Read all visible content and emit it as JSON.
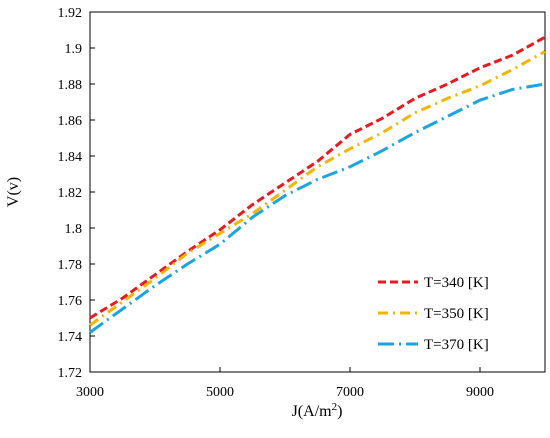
{
  "chart_data": {
    "type": "line",
    "xlabel": "J(A/m2)",
    "xlabel_main": "J(A/m",
    "xlabel_sup": "2",
    "xlabel_close": ")",
    "ylabel": "V(v)",
    "xlim": [
      3000,
      10000
    ],
    "ylim": [
      1.72,
      1.92
    ],
    "xticks": [
      "3000",
      "5000",
      "7000",
      "9000"
    ],
    "xtick_values": [
      3000,
      5000,
      7000,
      9000
    ],
    "yticks": [
      "1.72",
      "1.74",
      "1.76",
      "1.78",
      "1.8",
      "1.82",
      "1.84",
      "1.86",
      "1.88",
      "1.9",
      "1.92"
    ],
    "ytick_values": [
      1.72,
      1.74,
      1.76,
      1.78,
      1.8,
      1.82,
      1.84,
      1.86,
      1.88,
      1.9,
      1.92
    ],
    "grid": false,
    "legend_position": "bottom-right",
    "series": [
      {
        "name": "T=340 [K]",
        "color": "#e8191f",
        "dash": "dashed",
        "x": [
          3000,
          3500,
          4000,
          4500,
          5000,
          5500,
          6000,
          6500,
          7000,
          7500,
          8000,
          8500,
          9000,
          9500,
          10000
        ],
        "y": [
          1.75,
          1.761,
          1.774,
          1.787,
          1.799,
          1.813,
          1.825,
          1.837,
          1.852,
          1.861,
          1.872,
          1.88,
          1.889,
          1.896,
          1.906
        ]
      },
      {
        "name": "T=350 [K]",
        "color": "#f5b400",
        "dash": "dashdot",
        "x": [
          3000,
          3500,
          4000,
          4500,
          5000,
          5500,
          6000,
          6500,
          7000,
          7500,
          8000,
          8500,
          9000,
          9500,
          10000
        ],
        "y": [
          1.746,
          1.759,
          1.772,
          1.786,
          1.797,
          1.808,
          1.821,
          1.834,
          1.844,
          1.853,
          1.864,
          1.872,
          1.879,
          1.888,
          1.898
        ]
      },
      {
        "name": "T=370 [K]",
        "color": "#1aa5e0",
        "dash": "longdashdot",
        "x": [
          3000,
          3500,
          4000,
          4500,
          5000,
          5500,
          6000,
          6500,
          7000,
          7500,
          8000,
          8500,
          9000,
          9500,
          10000
        ],
        "y": [
          1.742,
          1.755,
          1.768,
          1.78,
          1.791,
          1.806,
          1.818,
          1.827,
          1.834,
          1.843,
          1.853,
          1.862,
          1.871,
          1.877,
          1.88
        ]
      }
    ]
  }
}
